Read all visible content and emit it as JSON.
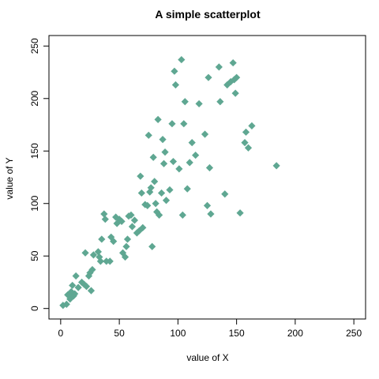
{
  "chart_data": {
    "type": "scatter",
    "title": "A simple scatterplot",
    "xlabel": "value of X",
    "ylabel": "value of Y",
    "xlim": [
      -10,
      260
    ],
    "ylim": [
      -10,
      260
    ],
    "x_ticks": [
      0,
      50,
      100,
      150,
      200,
      250
    ],
    "y_ticks": [
      0,
      50,
      100,
      150,
      200,
      250
    ],
    "grid": false,
    "legend": "none",
    "marker": "diamond",
    "marker_color": "#5fa792",
    "series": [
      {
        "points": [
          [
            2,
            3
          ],
          [
            5,
            4
          ],
          [
            6,
            13
          ],
          [
            8,
            9
          ],
          [
            9,
            16
          ],
          [
            10,
            22
          ],
          [
            11,
            12
          ],
          [
            12,
            14
          ],
          [
            13,
            31
          ],
          [
            15,
            20
          ],
          [
            18,
            25
          ],
          [
            20,
            23
          ],
          [
            21,
            53
          ],
          [
            22,
            21
          ],
          [
            24,
            31
          ],
          [
            25,
            34
          ],
          [
            26,
            17
          ],
          [
            27,
            37
          ],
          [
            28,
            51
          ],
          [
            32,
            54
          ],
          [
            33,
            49
          ],
          [
            34,
            45
          ],
          [
            35,
            66
          ],
          [
            37,
            90
          ],
          [
            38,
            85
          ],
          [
            39,
            45
          ],
          [
            42,
            45
          ],
          [
            43,
            68
          ],
          [
            45,
            64
          ],
          [
            47,
            87
          ],
          [
            48,
            81
          ],
          [
            50,
            85
          ],
          [
            52,
            83
          ],
          [
            53,
            53
          ],
          [
            55,
            49
          ],
          [
            56,
            59
          ],
          [
            57,
            66
          ],
          [
            58,
            88
          ],
          [
            60,
            89
          ],
          [
            61,
            78
          ],
          [
            63,
            84
          ],
          [
            65,
            72
          ],
          [
            67,
            74
          ],
          [
            68,
            126
          ],
          [
            69,
            110
          ],
          [
            70,
            77
          ],
          [
            72,
            99
          ],
          [
            74,
            98
          ],
          [
            75,
            165
          ],
          [
            76,
            111
          ],
          [
            77,
            115
          ],
          [
            78,
            59
          ],
          [
            79,
            144
          ],
          [
            80,
            121
          ],
          [
            81,
            100
          ],
          [
            82,
            92
          ],
          [
            83,
            180
          ],
          [
            84,
            89
          ],
          [
            86,
            110
          ],
          [
            87,
            161
          ],
          [
            88,
            138
          ],
          [
            89,
            149
          ],
          [
            90,
            103
          ],
          [
            93,
            113
          ],
          [
            95,
            176
          ],
          [
            96,
            140
          ],
          [
            97,
            226
          ],
          [
            98,
            213
          ],
          [
            101,
            133
          ],
          [
            103,
            237
          ],
          [
            104,
            89
          ],
          [
            105,
            176
          ],
          [
            106,
            197
          ],
          [
            108,
            114
          ],
          [
            110,
            139
          ],
          [
            112,
            158
          ],
          [
            115,
            146
          ],
          [
            118,
            195
          ],
          [
            123,
            166
          ],
          [
            125,
            98
          ],
          [
            126,
            220
          ],
          [
            127,
            134
          ],
          [
            128,
            90
          ],
          [
            135,
            230
          ],
          [
            136,
            197
          ],
          [
            140,
            109
          ],
          [
            142,
            213
          ],
          [
            145,
            216
          ],
          [
            147,
            234
          ],
          [
            148,
            218
          ],
          [
            149,
            205
          ],
          [
            150,
            220
          ],
          [
            153,
            91
          ],
          [
            157,
            158
          ],
          [
            158,
            168
          ],
          [
            160,
            153
          ],
          [
            163,
            174
          ],
          [
            184,
            136
          ]
        ]
      }
    ]
  }
}
